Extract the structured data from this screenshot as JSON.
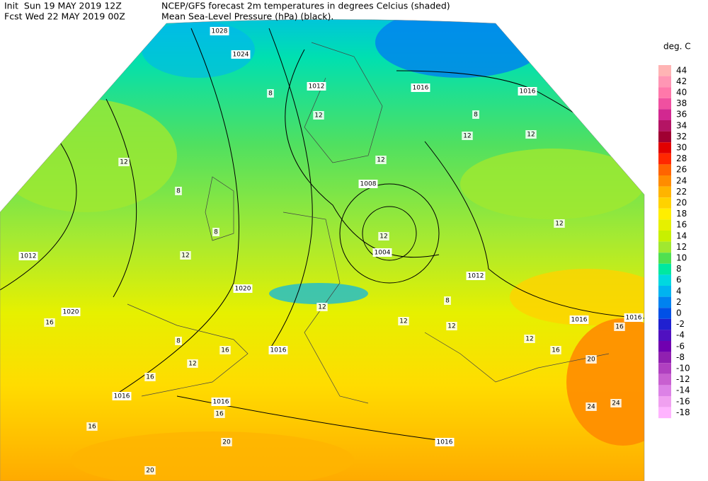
{
  "header": {
    "init": "Init  Sun 19 MAY 2019 12Z",
    "title": "NCEP/GFS forecast 2m temperatures in degrees Celcius (shaded)",
    "fcst": "Fcst Wed 22 MAY 2019 00Z",
    "subtitle": "Mean Sea-Level Pressure (hPa) (black)."
  },
  "legend": {
    "title": "deg. C",
    "levels": [
      44,
      42,
      40,
      38,
      36,
      34,
      32,
      30,
      28,
      26,
      24,
      22,
      20,
      18,
      16,
      14,
      12,
      10,
      8,
      6,
      4,
      2,
      0,
      -2,
      -4,
      -6,
      -8,
      -10,
      -12,
      -14,
      -16,
      -18
    ],
    "colors": [
      "#ffb4b4",
      "#ff96b4",
      "#ff78aa",
      "#f050a0",
      "#d22890",
      "#b41464",
      "#a00032",
      "#e10000",
      "#ff2800",
      "#ff6400",
      "#ff8c00",
      "#ffb400",
      "#ffd200",
      "#ffee00",
      "#e6f000",
      "#c8f000",
      "#a0e830",
      "#50e050",
      "#00e8a0",
      "#00d8e0",
      "#00b4f0",
      "#0082f0",
      "#0050e6",
      "#2020d0",
      "#5010c0",
      "#7000b0",
      "#9020b0",
      "#b040c0",
      "#c860d0",
      "#dc82e6",
      "#f0a0f0",
      "#ffb4ff"
    ]
  },
  "map": {
    "isobar_labels": [
      1028,
      1024,
      1016,
      1016,
      1012,
      1008,
      1004,
      1012,
      1020,
      1020,
      1012,
      1016,
      1016,
      1016,
      1016,
      1016,
      1016
    ],
    "temperature_labels": [
      8,
      12,
      12,
      8,
      12,
      8,
      12,
      12,
      12,
      8,
      12,
      12,
      12,
      16,
      8,
      12,
      16,
      16,
      16,
      20,
      24,
      24,
      16,
      20,
      16,
      20,
      12,
      12,
      8,
      12,
      16
    ]
  }
}
